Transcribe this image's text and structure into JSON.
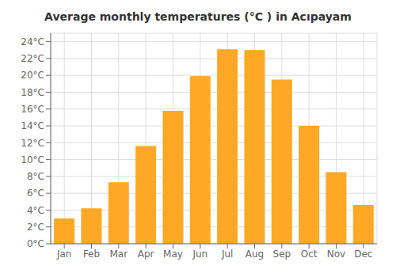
{
  "chart_data": {
    "type": "bar",
    "title": "Average monthly temperatures (°C ) in Acıpayam",
    "categories": [
      "Jan",
      "Feb",
      "Mar",
      "Apr",
      "May",
      "Jun",
      "Jul",
      "Aug",
      "Sep",
      "Oct",
      "Nov",
      "Dec"
    ],
    "values": [
      3.0,
      4.2,
      7.3,
      11.6,
      15.8,
      19.9,
      23.1,
      23.0,
      19.5,
      14.0,
      8.5,
      4.6
    ],
    "color": "#FFA826",
    "ylim": [
      0,
      25
    ],
    "yticks": [
      {
        "value": 0,
        "label": "0°C"
      },
      {
        "value": 2,
        "label": "2°C"
      },
      {
        "value": 4,
        "label": "4°C"
      },
      {
        "value": 6,
        "label": "6°C"
      },
      {
        "value": 8,
        "label": "8°C"
      },
      {
        "value": 10,
        "label": "10°C"
      },
      {
        "value": 12,
        "label": "12°C"
      },
      {
        "value": 14,
        "label": "14°C"
      },
      {
        "value": 16,
        "label": "16°C"
      },
      {
        "value": 18,
        "label": "18°C"
      },
      {
        "value": 20,
        "label": "20°C"
      },
      {
        "value": 22,
        "label": "22°C"
      },
      {
        "value": 24,
        "label": "24°C"
      }
    ],
    "grid": true
  }
}
